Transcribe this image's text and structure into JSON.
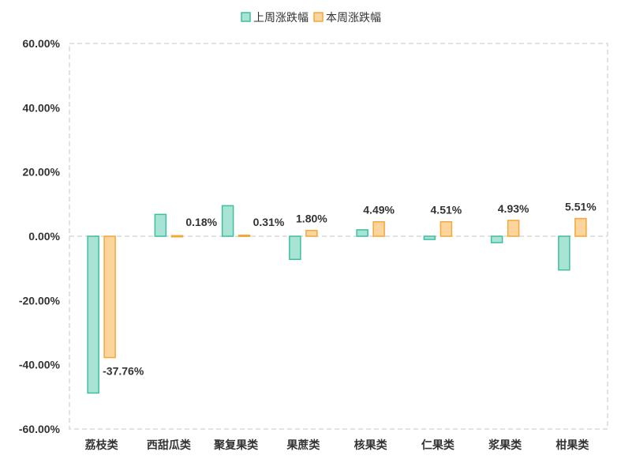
{
  "chart_data": {
    "type": "bar",
    "categories": [
      "荔枝类",
      "西甜瓜类",
      "聚复果类",
      "果蔗类",
      "核果类",
      "仁果类",
      "浆果类",
      "柑果类"
    ],
    "series": [
      {
        "name": "上周涨跌幅",
        "values": [
          -48.8,
          6.8,
          9.5,
          -7.2,
          2.0,
          -1.0,
          -2.0,
          -10.5
        ],
        "fill": "#a8e4d6",
        "stroke": "#3fbf9f"
      },
      {
        "name": "本周涨跌幅",
        "values": [
          -37.76,
          0.18,
          0.31,
          1.8,
          4.49,
          4.51,
          4.93,
          5.51
        ],
        "data_labels": [
          "-37.76%",
          "0.18%",
          "0.31%",
          "1.80%",
          "4.49%",
          "4.51%",
          "4.93%",
          "5.51%"
        ],
        "fill": "#fdd49b",
        "stroke": "#f2a93b"
      }
    ],
    "yticks": [
      60,
      40,
      20,
      0,
      -20,
      -40,
      -60
    ],
    "ytick_labels": [
      "60.00%",
      "40.00%",
      "20.00%",
      "0.00%",
      "-20.00%",
      "-40.00%",
      "-60.00%"
    ],
    "ylim": [
      -60,
      60
    ],
    "grid": false,
    "legend_position": "top-center",
    "title": "",
    "xlabel": "",
    "ylabel": ""
  }
}
